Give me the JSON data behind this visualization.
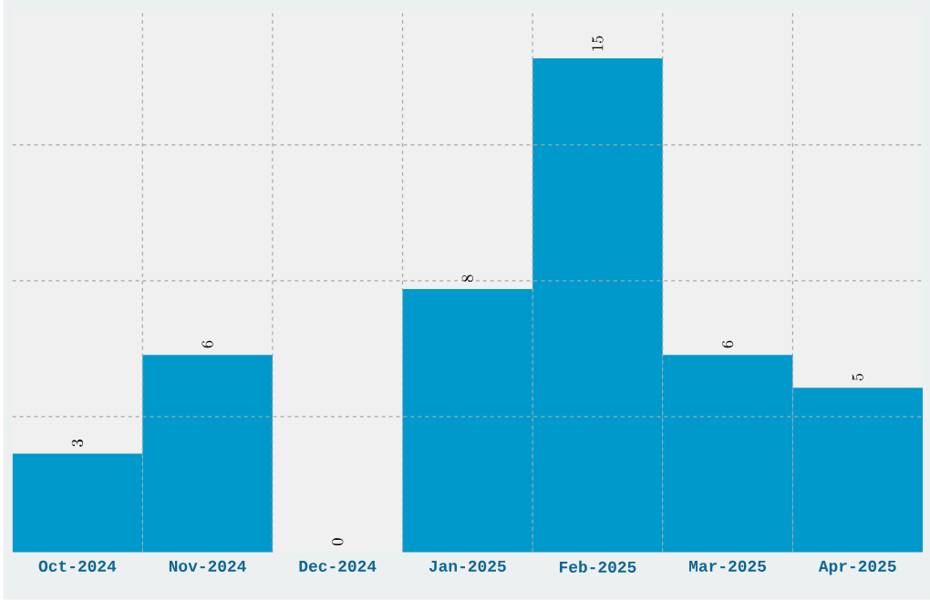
{
  "chart_data": {
    "type": "bar",
    "categories": [
      "Oct-2024",
      "Nov-2024",
      "Dec-2024",
      "Jan-2025",
      "Feb-2025",
      "Mar-2025",
      "Apr-2025"
    ],
    "values": [
      3,
      6,
      0,
      8,
      15,
      6,
      5
    ],
    "color": "#0099cc",
    "ylim": [
      0,
      16.5
    ],
    "yticks": [
      {
        "value": 4.125,
        "label": null
      },
      {
        "value": 8.25,
        "label": null
      },
      {
        "value": 12.375,
        "label": null
      }
    ],
    "tick_labels": "x",
    "grid": true,
    "data_labels": true
  }
}
